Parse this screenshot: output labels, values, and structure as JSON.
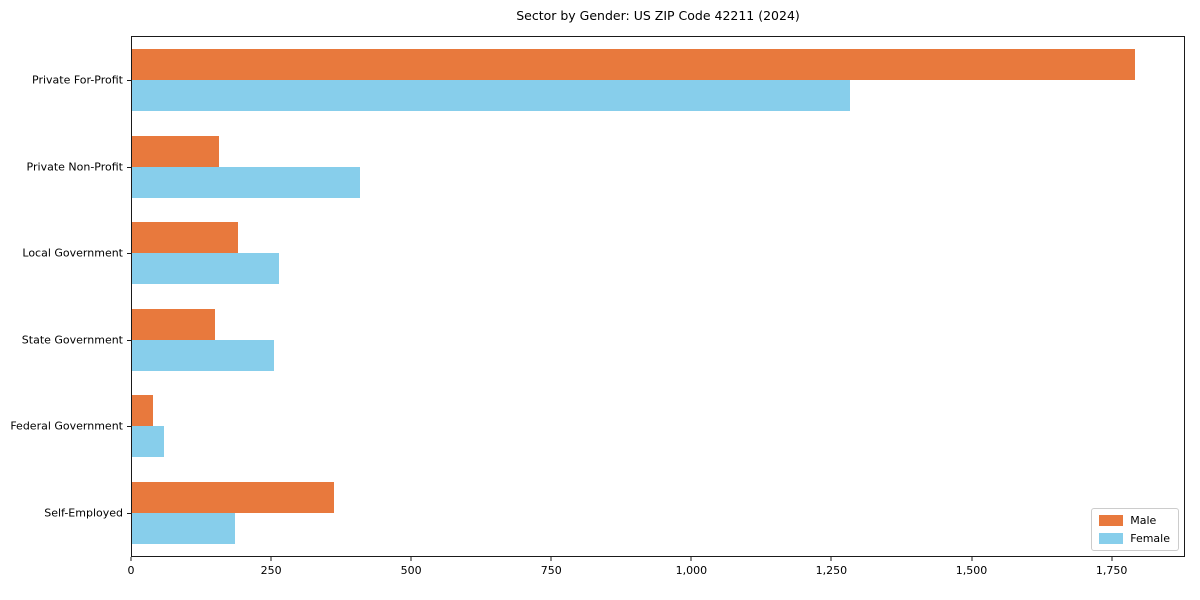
{
  "chart_data": {
    "type": "bar",
    "orientation": "horizontal",
    "title": "Sector by Gender: US ZIP Code 42211 (2024)",
    "categories": [
      "Private For-Profit",
      "Private Non-Profit",
      "Local Government",
      "State Government",
      "Federal Government",
      "Self-Employed"
    ],
    "series": [
      {
        "name": "Male",
        "color": "#e8793d",
        "values": [
          1793,
          155,
          189,
          148,
          38,
          362
        ]
      },
      {
        "name": "Female",
        "color": "#87ceeb",
        "values": [
          1284,
          407,
          262,
          254,
          57,
          184
        ]
      }
    ],
    "xlabel": "",
    "ylabel": "",
    "xlim": [
      0,
      1881
    ],
    "xtick_values": [
      0,
      250,
      500,
      750,
      1000,
      1250,
      1500,
      1750
    ],
    "xtick_labels": [
      "0",
      "250",
      "500",
      "750",
      "1,000",
      "1,250",
      "1,500",
      "1,750"
    ],
    "legend": {
      "position": "lower-right",
      "labels": [
        "Male",
        "Female"
      ]
    },
    "grid": false
  },
  "colors": {
    "background": "#ffffff",
    "spine": "#1a1a1a",
    "text": "#000000",
    "legend_border": "#cccccc",
    "male": "#e8793d",
    "female": "#87ceeb"
  }
}
